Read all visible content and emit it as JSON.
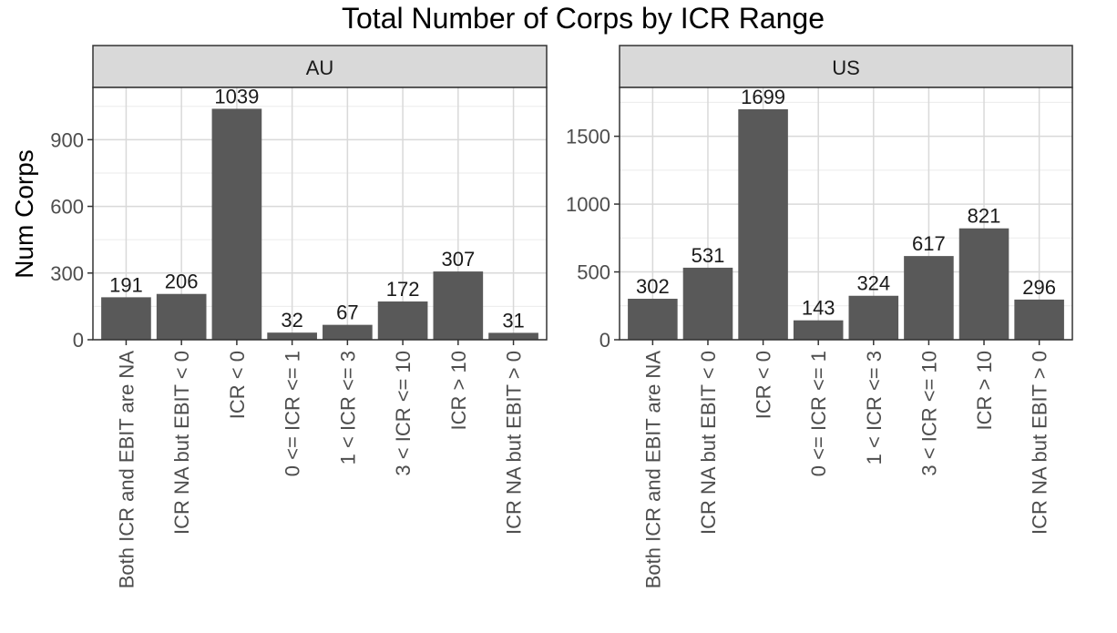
{
  "chart_data": {
    "type": "bar",
    "title": "Total Number of Corps by ICR Range",
    "ylabel": "Num Corps",
    "xlabel": "",
    "categories": [
      "Both ICR and EBIT are NA",
      "ICR NA but EBIT < 0",
      "ICR < 0",
      "0 <= ICR <= 1",
      "1 < ICR <= 3",
      "3 < ICR <= 10",
      "ICR > 10",
      "ICR NA but EBIT > 0"
    ],
    "panels": [
      {
        "name": "AU",
        "values": [
          191,
          206,
          1039,
          32,
          67,
          172,
          307,
          31
        ],
        "ylim": [
          0,
          1135
        ],
        "yticks": [
          0,
          300,
          600,
          900
        ]
      },
      {
        "name": "US",
        "values": [
          302,
          531,
          1699,
          143,
          324,
          617,
          821,
          296
        ],
        "ylim": [
          0,
          1860
        ],
        "yticks": [
          0,
          500,
          1000,
          1500
        ]
      }
    ],
    "bar_color": "#595959",
    "strip_color": "#d9d9d9",
    "grid": true
  }
}
